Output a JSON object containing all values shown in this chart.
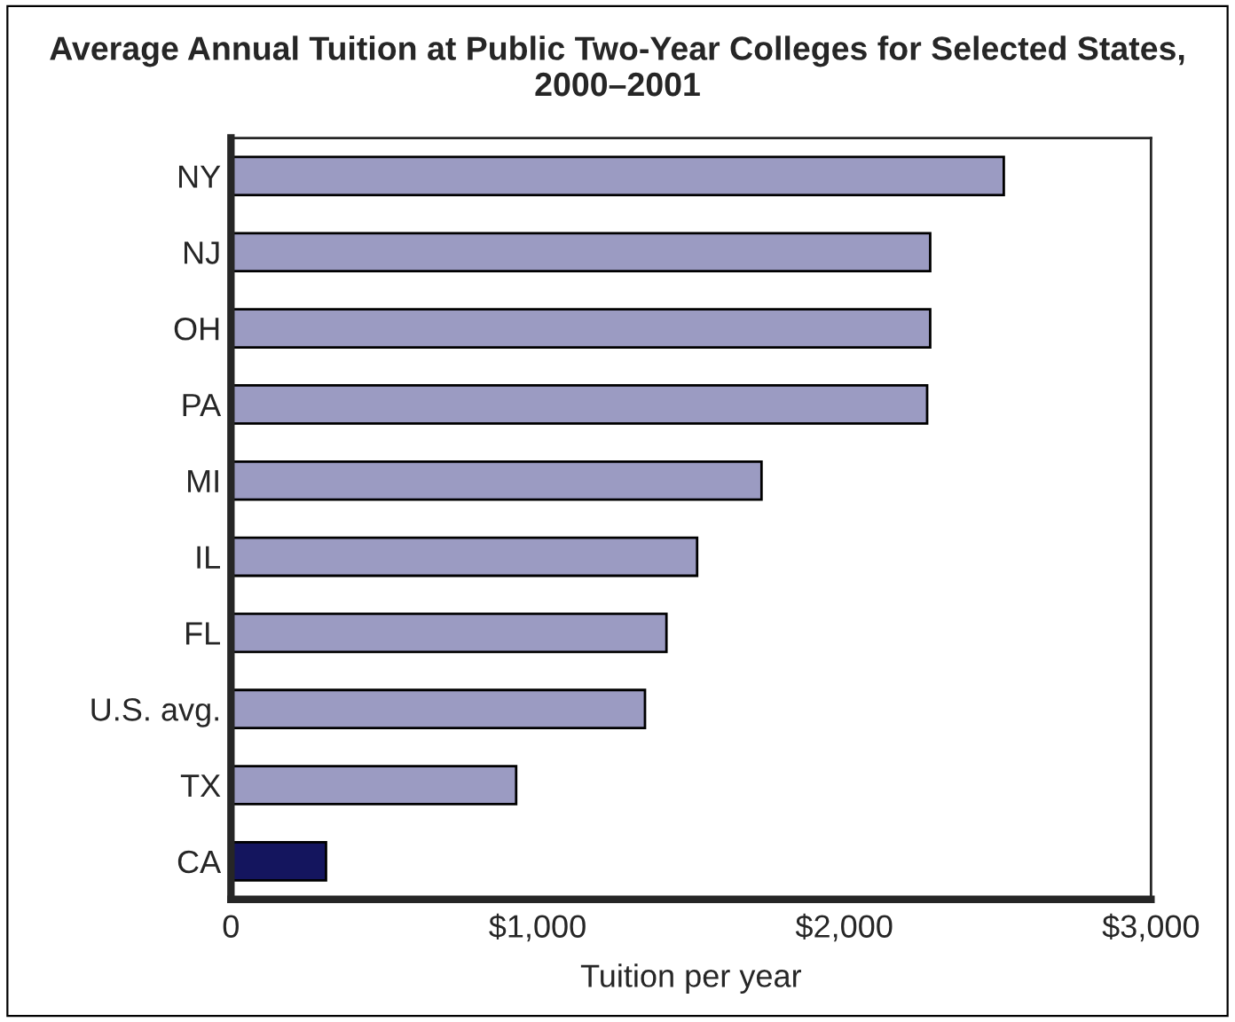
{
  "chart_data": {
    "type": "bar",
    "orientation": "horizontal",
    "title": "Average Annual Tuition at Public Two-Year Colleges for Selected States, 2000–2001",
    "xlabel": "Tuition per year",
    "categories": [
      "NY",
      "NJ",
      "OH",
      "PA",
      "MI",
      "IL",
      "FL",
      "U.S. avg.",
      "TX",
      "CA"
    ],
    "values": [
      2520,
      2280,
      2280,
      2270,
      1730,
      1520,
      1420,
      1350,
      930,
      310
    ],
    "colors": [
      "#9b9bc2",
      "#9b9bc2",
      "#9b9bc2",
      "#9b9bc2",
      "#9b9bc2",
      "#9b9bc2",
      "#9b9bc2",
      "#9b9bc2",
      "#9b9bc2",
      "#14155e"
    ],
    "xlim": [
      0,
      3000
    ],
    "xticks": [
      0,
      {
        "value": 1000,
        "label": "$1,000"
      },
      {
        "value": 2000,
        "label": "$2,000"
      },
      {
        "value": 3000,
        "label": "$3,000"
      }
    ],
    "grid": false,
    "legend": false
  }
}
